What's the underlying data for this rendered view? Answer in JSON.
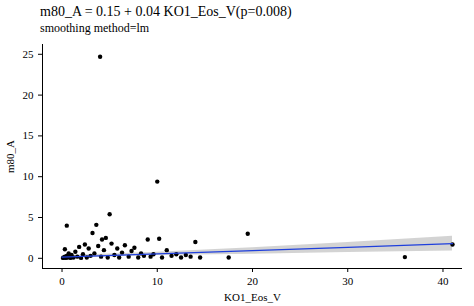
{
  "chart_data": {
    "type": "scatter",
    "title": "m80_A = 0.15 + 0.04 KO1_Eos_V(p=0.008)",
    "subtitle": "smoothing method=lm",
    "x_label": "KO1_Eos_V",
    "y_label": "m80_A",
    "color": "#000000",
    "marker": "circle",
    "x": [
      0.1,
      0.2,
      0.3,
      0.4,
      0.5,
      0.6,
      0.7,
      0.8,
      0.9,
      0.3,
      0.5,
      1.0,
      1.2,
      1.4,
      1.6,
      1.8,
      2.0,
      2.2,
      2.4,
      2.6,
      2.8,
      3.0,
      3.2,
      3.4,
      3.6,
      3.8,
      4.0,
      4.1,
      4.2,
      4.4,
      4.6,
      4.8,
      5.0,
      5.2,
      5.5,
      5.8,
      6.0,
      6.3,
      6.6,
      7.0,
      7.3,
      7.6,
      8.0,
      8.3,
      8.6,
      9.0,
      9.3,
      9.6,
      10.0,
      10.2,
      10.5,
      11.0,
      11.5,
      12.0,
      12.5,
      13.0,
      13.5,
      14.0,
      14.5,
      17.5,
      19.5,
      36.0,
      41.0
    ],
    "y": [
      0.05,
      0.1,
      0.2,
      0.05,
      0.3,
      0.1,
      0.6,
      0.15,
      0.05,
      1.1,
      4.0,
      0.4,
      0.1,
      0.8,
      0.2,
      1.4,
      0.05,
      0.5,
      1.7,
      0.1,
      1.2,
      0.3,
      3.1,
      0.6,
      4.1,
      1.5,
      24.7,
      0.2,
      2.3,
      1.0,
      2.5,
      0.1,
      5.4,
      1.8,
      0.4,
      1.2,
      0.1,
      0.7,
      1.6,
      0.2,
      0.9,
      1.3,
      0.1,
      0.6,
      0.3,
      2.3,
      0.2,
      0.5,
      9.4,
      2.4,
      0.1,
      1.0,
      0.3,
      0.5,
      0.1,
      0.4,
      0.2,
      2.0,
      0.1,
      0.1,
      3.0,
      0.15,
      1.7
    ],
    "fit": {
      "type": "line",
      "color": "#1f3fdc",
      "x": [
        0,
        10,
        20,
        30,
        41
      ],
      "values": [
        0.15,
        0.55,
        0.95,
        1.35,
        1.79
      ],
      "lower": [
        0.0,
        0.35,
        0.5,
        0.7,
        0.9
      ],
      "upper": [
        0.3,
        0.75,
        1.3,
        1.95,
        2.7
      ],
      "band_color": "#c8c8c8"
    },
    "xlim": [
      -2.05,
      42.05
    ],
    "ylim": [
      -1.25,
      26.2
    ],
    "xticks": [
      0,
      10,
      20,
      30,
      40
    ],
    "yticks": [
      0,
      5,
      10,
      15,
      20,
      25
    ],
    "grid": false
  }
}
